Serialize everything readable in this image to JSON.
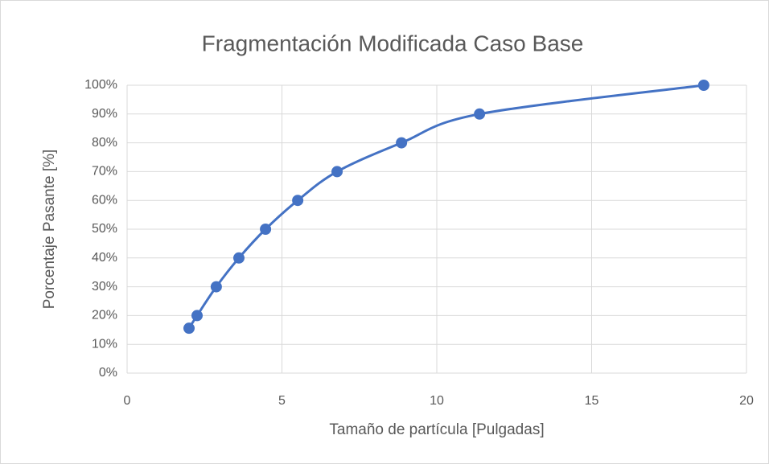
{
  "chart_data": {
    "type": "scatter",
    "title": "Fragmentación Modificada Caso Base",
    "x_label": "Tamaño de partícula [Pulgadas]",
    "y_label": "Porcentaje Pasante [%]",
    "series": [
      {
        "name": "Caso Base",
        "color": "#4472c4",
        "x": [
          2.0,
          2.26,
          2.88,
          3.61,
          4.47,
          5.51,
          6.78,
          8.86,
          11.38,
          18.62
        ],
        "values": [
          15.6,
          20,
          30,
          40,
          50,
          60,
          70,
          80,
          90,
          100
        ]
      }
    ],
    "smooth": true,
    "xlim": [
      0,
      20
    ],
    "xticks": [
      0,
      5,
      10,
      15,
      20
    ],
    "ylim": [
      0,
      100
    ],
    "yticks": [
      {
        "value": 0,
        "label": "0%"
      },
      {
        "value": 10,
        "label": "10%"
      },
      {
        "value": 20,
        "label": "20%"
      },
      {
        "value": 30,
        "label": "30%"
      },
      {
        "value": 40,
        "label": "40%"
      },
      {
        "value": 50,
        "label": "50%"
      },
      {
        "value": 60,
        "label": "60%"
      },
      {
        "value": 70,
        "label": "70%"
      },
      {
        "value": 80,
        "label": "80%"
      },
      {
        "value": 90,
        "label": "90%"
      },
      {
        "value": 100,
        "label": "100%"
      }
    ],
    "grid": true
  }
}
